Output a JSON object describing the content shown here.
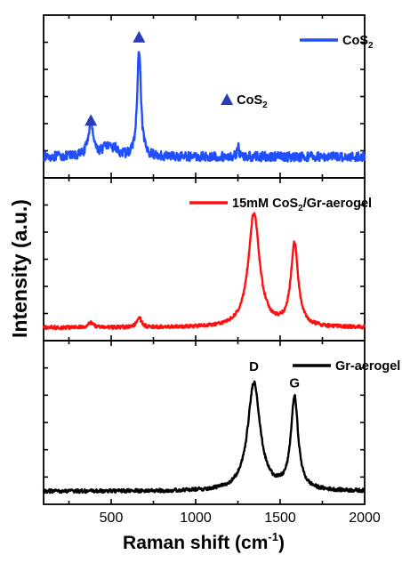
{
  "chart_data": {
    "type": "line",
    "xlabel": "Raman shift (cm",
    "xlabel_sup": "-1",
    "xlabel_end": ")",
    "ylabel": "Intensity (a.u.)",
    "xlim": [
      100,
      2000
    ],
    "xticks": [
      "500",
      "1000",
      "1500",
      "2000"
    ],
    "grid": false,
    "panels": [
      {
        "name": "CoS",
        "name_sub": "2",
        "color": "#1f4fff",
        "legend_position": "top-right",
        "baseline": 0.12,
        "noise": 0.04,
        "peaks": [
          {
            "x": 380,
            "height": 0.3,
            "width": 18
          },
          {
            "x": 470,
            "height": 0.08,
            "width": 25
          },
          {
            "x": 520,
            "height": 0.06,
            "width": 20
          },
          {
            "x": 665,
            "height": 0.9,
            "width": 13
          },
          {
            "x": 1250,
            "height": 0.1,
            "width": 6
          }
        ],
        "markers": [
          {
            "x": 380,
            "y": 0.43
          },
          {
            "x": 665,
            "y": 1.14
          }
        ],
        "marker_label": "CoS",
        "marker_label_sub": "2"
      },
      {
        "name": "15mM CoS",
        "name_sub": "2",
        "name_end": "/Gr-aerogel",
        "color": "#ff1010",
        "legend_position": "top-right",
        "baseline": 0.05,
        "noise": 0.015,
        "peaks": [
          {
            "x": 380,
            "height": 0.04,
            "width": 20
          },
          {
            "x": 665,
            "height": 0.09,
            "width": 15
          },
          {
            "x": 1345,
            "height": 0.97,
            "width": 40
          },
          {
            "x": 1585,
            "height": 0.7,
            "width": 26
          }
        ]
      },
      {
        "name": "Gr-aerogel",
        "color": "#000000",
        "legend_position": "top-right",
        "baseline": 0.05,
        "noise": 0.015,
        "peaks": [
          {
            "x": 1345,
            "height": 0.92,
            "width": 44
          },
          {
            "x": 1585,
            "height": 0.78,
            "width": 26
          }
        ],
        "peak_labels": [
          {
            "text": "D",
            "x": 1345
          },
          {
            "text": "G",
            "x": 1585
          }
        ]
      }
    ]
  }
}
